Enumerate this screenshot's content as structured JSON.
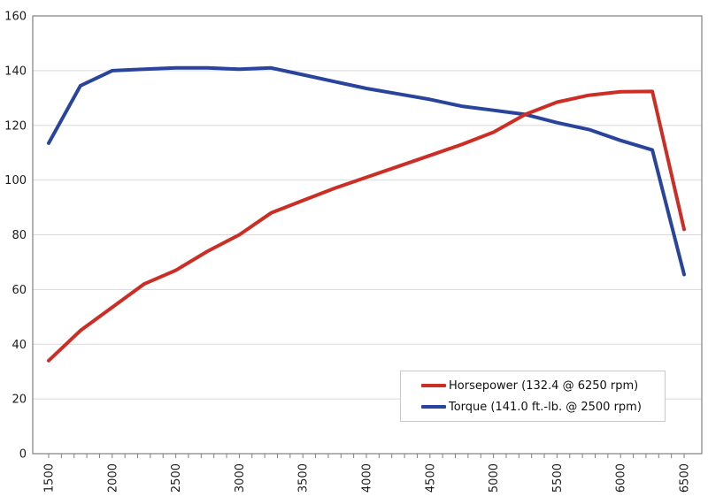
{
  "chart_data": {
    "type": "line",
    "title": "",
    "xlabel": "",
    "ylabel": "",
    "x": [
      1500,
      1750,
      2000,
      2250,
      2500,
      2750,
      3000,
      3250,
      3500,
      3750,
      4000,
      4250,
      4500,
      4750,
      5000,
      5250,
      5500,
      5750,
      6000,
      6250,
      6500
    ],
    "series": [
      {
        "name": "Horsepower (132.4 @ 6250 rpm)",
        "color": "#cc2d25",
        "values": [
          34,
          45,
          53.5,
          62,
          67,
          74,
          80,
          88,
          92.5,
          97,
          101,
          105,
          109,
          113,
          117.5,
          124,
          128.5,
          131,
          132.3,
          132.4,
          82
        ],
        "peak_label": "132.4 @ 6250 rpm"
      },
      {
        "name": "Torque (141.0 ft.-lb. @ 2500 rpm)",
        "color": "#28449c",
        "values": [
          113.5,
          134.5,
          140,
          140.5,
          141,
          141,
          140.5,
          141,
          138.5,
          136,
          133.5,
          131.5,
          129.5,
          127,
          125.5,
          124,
          121,
          118.5,
          114.5,
          111,
          65.5
        ],
        "peak_label": "141.0 ft.-lb. @ 2500 rpm"
      }
    ],
    "xlim": [
      1373,
      6640
    ],
    "ylim": [
      0,
      160
    ],
    "y_tick_labels": [
      "0",
      "20",
      "40",
      "60",
      "80",
      "100",
      "120",
      "140",
      "160"
    ],
    "y_ticks": [
      0,
      20,
      40,
      60,
      80,
      100,
      120,
      140,
      160
    ],
    "x_tick_labels": [
      "1500",
      "2000",
      "2500",
      "3000",
      "3500",
      "4000",
      "4500",
      "5000",
      "5500",
      "6000",
      "6500"
    ],
    "x_major_ticks": [
      1500,
      2000,
      2500,
      3000,
      3500,
      4000,
      4500,
      5000,
      5500,
      6000,
      6500
    ],
    "x_minor_tick_step": 100,
    "grid": "horizontal",
    "legend_position": "inside-bottom-right",
    "colors": {
      "axis": "#808080",
      "grid": "#d9d9d9",
      "tick": "#808080",
      "label_text": "#1a1a1a",
      "background": "#ffffff",
      "legend_border": "#c9c9c9"
    }
  }
}
